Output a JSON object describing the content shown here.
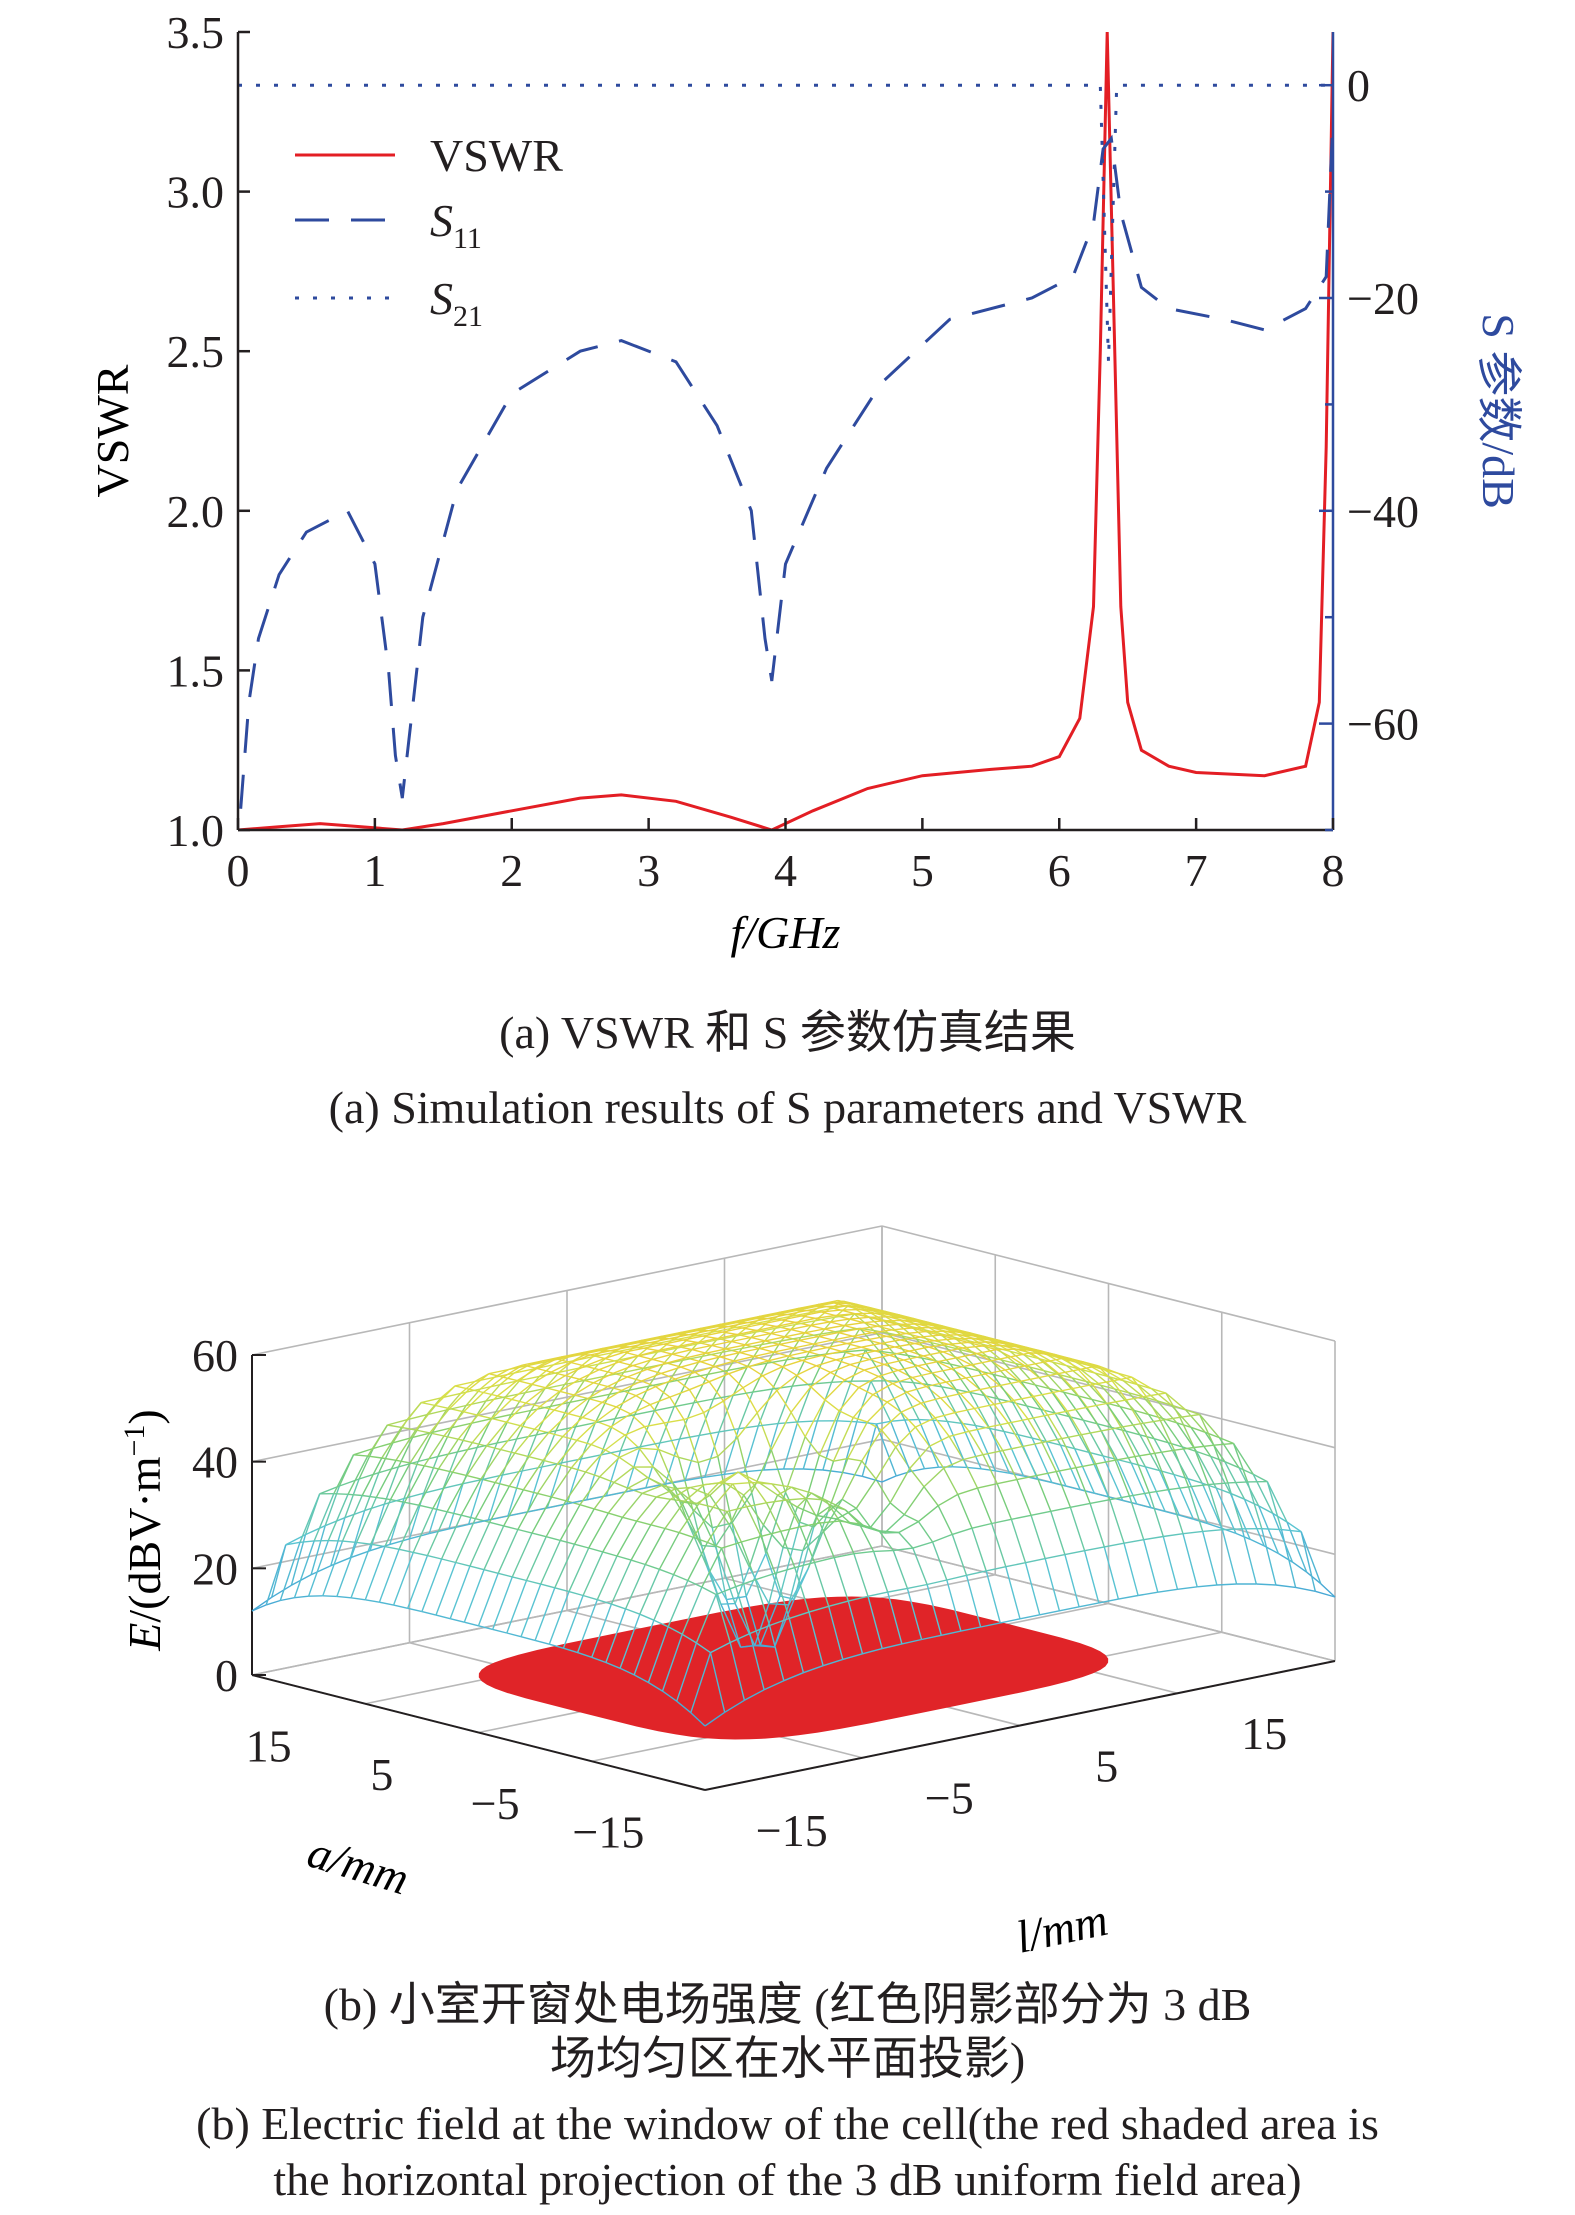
{
  "chart_data": [
    {
      "type": "line",
      "xlabel": "f/GHz",
      "ylabel": "VSWR",
      "y2label": "S 参数/dB",
      "xlim": [
        0,
        8
      ],
      "ylim": [
        1.0,
        3.5
      ],
      "y2lim": [
        -70,
        5
      ],
      "xticks": [
        "0",
        "1",
        "2",
        "3",
        "4",
        "5",
        "6",
        "7",
        "8"
      ],
      "yticks": [
        "1.0",
        "1.5",
        "2.0",
        "2.5",
        "3.0",
        "3.5"
      ],
      "y2ticks": [
        "0",
        "−20",
        "−40",
        "−60"
      ],
      "legend_position": "top-left",
      "colors": {
        "vswr": "#e31e24",
        "s11": "#2e4a9e",
        "s21": "#2e4a9e",
        "right_axis": "#2e4a9e"
      },
      "series": [
        {
          "name": "VSWR",
          "axis": "left",
          "style": "solid",
          "x": [
            0,
            0.3,
            0.6,
            0.9,
            1.2,
            1.5,
            2.0,
            2.5,
            2.8,
            3.2,
            3.6,
            3.9,
            4.2,
            4.6,
            5.0,
            5.5,
            5.8,
            6.0,
            6.15,
            6.25,
            6.3,
            6.35,
            6.4,
            6.45,
            6.5,
            6.6,
            6.8,
            7.0,
            7.5,
            7.8,
            7.9,
            7.95,
            8.0
          ],
          "values": [
            1.0,
            1.01,
            1.02,
            1.01,
            1.0,
            1.02,
            1.06,
            1.1,
            1.11,
            1.09,
            1.04,
            1.0,
            1.06,
            1.13,
            1.17,
            1.19,
            1.2,
            1.23,
            1.35,
            1.7,
            2.5,
            3.5,
            2.6,
            1.7,
            1.4,
            1.25,
            1.2,
            1.18,
            1.17,
            1.2,
            1.4,
            2.2,
            3.5
          ]
        },
        {
          "name": "S11",
          "axis": "right",
          "style": "dashed",
          "x": [
            0.02,
            0.08,
            0.15,
            0.3,
            0.5,
            0.8,
            1.0,
            1.1,
            1.15,
            1.2,
            1.35,
            1.6,
            2.0,
            2.5,
            2.8,
            3.2,
            3.5,
            3.75,
            3.85,
            3.9,
            4.0,
            4.3,
            4.7,
            5.2,
            5.8,
            6.1,
            6.25,
            6.32,
            6.38,
            6.45,
            6.6,
            6.8,
            7.2,
            7.5,
            7.8,
            7.95,
            8.0
          ],
          "values": [
            -68,
            -58,
            -52,
            -46,
            -42,
            -40,
            -45,
            -55,
            -63,
            -67,
            -50,
            -38,
            -29,
            -25,
            -24,
            -26,
            -32,
            -40,
            -52,
            -56,
            -45,
            -36,
            -28,
            -22,
            -20,
            -18,
            -13,
            -6,
            -5,
            -12,
            -19,
            -21,
            -22,
            -23,
            -21,
            -18,
            -3
          ]
        },
        {
          "name": "S21",
          "axis": "right",
          "style": "dotted",
          "x": [
            0,
            6.3,
            6.36,
            6.42,
            8
          ],
          "values": [
            0,
            0,
            -26,
            0,
            0
          ]
        }
      ],
      "legend_labels": [
        "VSWR",
        "S",
        "11",
        "S",
        "21"
      ]
    },
    {
      "type": "surface",
      "zlabel_main": "E",
      "zlabel_unit": "/(dBV·m",
      "zlabel_exp": "−1",
      "zlabel_close": ")",
      "xlabel": "l/mm",
      "ylabel": "a/mm",
      "zticks": [
        "0",
        "20",
        "40",
        "60"
      ],
      "xticks": [
        "−15",
        "−5",
        "5",
        "15"
      ],
      "yticks": [
        "15",
        "5",
        "−5",
        "−15"
      ],
      "zlim": [
        0,
        60
      ],
      "colors": {
        "shadow": "#e02428",
        "low": "#3aa6d8",
        "mid": "#6fce7a",
        "high": "#d9e04a",
        "edge": "#e9a33c"
      },
      "surface_profile": {
        "center_level": 60,
        "corner_level": 20,
        "dip_min": 5
      }
    }
  ],
  "captions": {
    "a_cn": "(a) VSWR 和 S 参数仿真结果",
    "a_en": "(a) Simulation results of S parameters and VSWR",
    "b_cn_1": "(b) 小室开窗处电场强度 (红色阴影部分为 3 dB",
    "b_cn_2": "场均匀区在水平面投影)",
    "b_en_1": "(b) Electric field at the window of the cell(the red shaded area is",
    "b_en_2": "the horizontal projection of the 3 dB uniform field area)"
  }
}
